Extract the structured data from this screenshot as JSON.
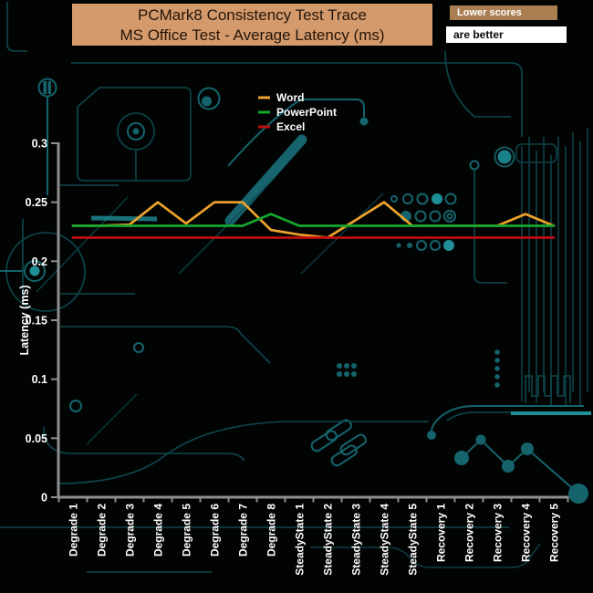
{
  "header": {
    "badge_top": "Lower scores",
    "badge_bottom": "are better",
    "title_bg": "#d49a6c",
    "badge_top_bg": "#a97e50"
  },
  "chart_data": {
    "type": "line",
    "title": "PCMark8 Consistency Test Trace",
    "subtitle": "MS Office Test -  Average Latency (ms)",
    "ylabel": "Latency (ms)",
    "ylim": [
      0,
      0.3
    ],
    "y_ticks": [
      0,
      0.05,
      0.1,
      0.15,
      0.2,
      0.25,
      0.3
    ],
    "y_tick_labels": [
      "0",
      "0.05",
      "0.1",
      "0.15",
      "0.2",
      "0.25",
      "0.3"
    ],
    "categories": [
      "Degrade 1",
      "Degrade 2",
      "Degrade 3",
      "Degrade 4",
      "Degrade 5",
      "Degrade 6",
      "Degrade 7",
      "Degrade 8",
      "SteadyState 1",
      "SteadyState 2",
      "SteadyState 3",
      "SteadyState 4",
      "SteadyState 5",
      "Recovery 1",
      "Recovery 2",
      "Recovery 3",
      "Recovery 4",
      "Recovery 5"
    ],
    "series": [
      {
        "name": "Word",
        "color": "#efa32b",
        "values": [
          0.23,
          0.23,
          0.231,
          0.25,
          0.232,
          0.25,
          0.25,
          0.2265,
          0.2225,
          0.22,
          0.235,
          0.25,
          0.23,
          0.23,
          0.23,
          0.23,
          0.24,
          0.23
        ]
      },
      {
        "name": "PowerPoint",
        "color": "#15a62c",
        "values": [
          0.23,
          0.23,
          0.23,
          0.23,
          0.23,
          0.23,
          0.23,
          0.24,
          0.23,
          0.23,
          0.23,
          0.23,
          0.23,
          0.23,
          0.23,
          0.23,
          0.23,
          0.23
        ]
      },
      {
        "name": "Excel",
        "color": "#c00d0d",
        "values": [
          0.22,
          0.22,
          0.22,
          0.22,
          0.22,
          0.22,
          0.22,
          0.22,
          0.22,
          0.22,
          0.22,
          0.22,
          0.22,
          0.22,
          0.22,
          0.22,
          0.22,
          0.22
        ]
      }
    ],
    "legend_position": "top-center",
    "grid": false,
    "axis_color": "#8f8f8f",
    "text_color": "#ffffff"
  }
}
